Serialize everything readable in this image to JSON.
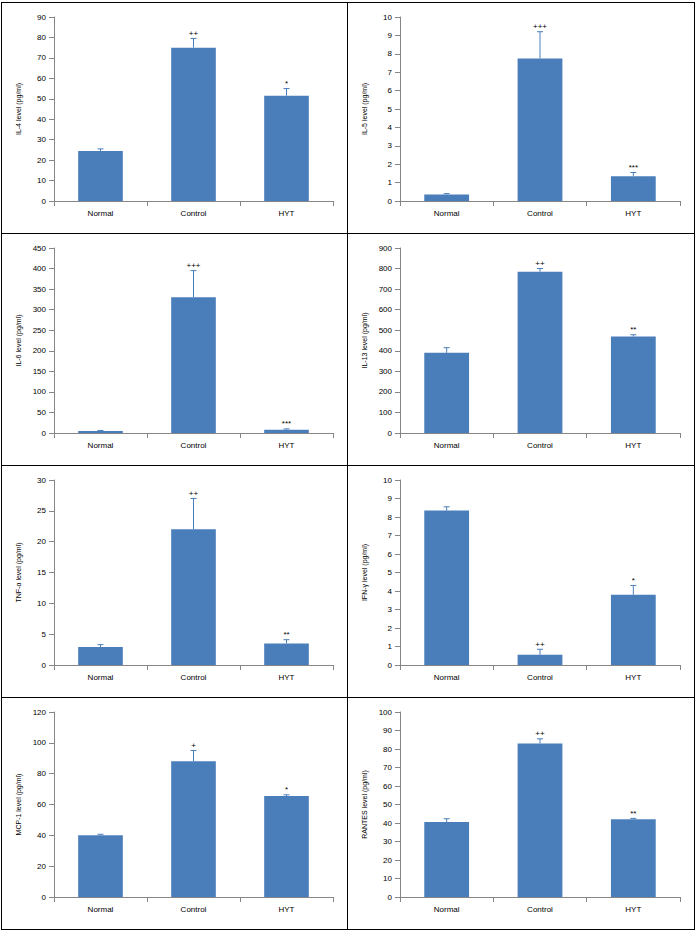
{
  "chart_data": [
    {
      "type": "bar",
      "ylabel": "IL-4 level (pg/ml)",
      "categories": [
        "Normal",
        "Control",
        "HYT"
      ],
      "values": [
        24.5,
        75,
        51.5
      ],
      "errors": [
        1,
        4.5,
        3.5
      ],
      "significance": [
        null,
        "++",
        "*"
      ],
      "color": "#4a7ebb",
      "ylim": [
        0,
        90
      ],
      "yticks": [
        0,
        10,
        20,
        30,
        40,
        50,
        60,
        70,
        80,
        90
      ],
      "grid": false
    },
    {
      "type": "bar",
      "ylabel": "IL-5 level (pg/ml)",
      "categories": [
        "Normal",
        "Control",
        "HYT"
      ],
      "values": [
        0.35,
        7.75,
        1.35
      ],
      "errors": [
        0.05,
        1.45,
        0.2
      ],
      "significance": [
        null,
        "+++",
        "***"
      ],
      "color": "#4a7ebb",
      "ylim": [
        0,
        10
      ],
      "yticks": [
        0,
        1,
        2,
        3,
        4,
        5,
        6,
        7,
        8,
        9,
        10
      ],
      "grid": false
    },
    {
      "type": "bar",
      "ylabel": "IL-6 level (pg/ml)",
      "categories": [
        "Normal",
        "Control",
        "HYT"
      ],
      "values": [
        5,
        330,
        8
      ],
      "errors": [
        1,
        65,
        2
      ],
      "significance": [
        null,
        "+++",
        "***"
      ],
      "color": "#4a7ebb",
      "ylim": [
        0,
        450
      ],
      "yticks": [
        0,
        50,
        100,
        150,
        200,
        250,
        300,
        350,
        400,
        450
      ],
      "grid": false
    },
    {
      "type": "bar",
      "ylabel": "IL-13 level (pg/ml)",
      "categories": [
        "Normal",
        "Control",
        "HYT"
      ],
      "values": [
        390,
        785,
        470
      ],
      "errors": [
        25,
        15,
        8
      ],
      "significance": [
        null,
        "++",
        "**"
      ],
      "color": "#4a7ebb",
      "ylim": [
        0,
        900
      ],
      "yticks": [
        0,
        100,
        200,
        300,
        400,
        500,
        600,
        700,
        800,
        900
      ],
      "grid": false
    },
    {
      "type": "bar",
      "ylabel": "TNF-α level (pg/ml)",
      "categories": [
        "Normal",
        "Control",
        "HYT"
      ],
      "values": [
        2.9,
        22,
        3.5
      ],
      "errors": [
        0.4,
        5,
        0.6
      ],
      "significance": [
        null,
        "++",
        "**"
      ],
      "color": "#4a7ebb",
      "ylim": [
        0,
        30
      ],
      "yticks": [
        0,
        5,
        10,
        15,
        20,
        25,
        30
      ],
      "grid": false
    },
    {
      "type": "bar",
      "ylabel": "IFN-γ level (pg/ml)",
      "categories": [
        "Normal",
        "Control",
        "HYT"
      ],
      "values": [
        8.35,
        0.55,
        3.8
      ],
      "errors": [
        0.2,
        0.3,
        0.5
      ],
      "significance": [
        null,
        "++",
        "*"
      ],
      "color": "#4a7ebb",
      "ylim": [
        0,
        10
      ],
      "yticks": [
        0,
        1,
        2,
        3,
        4,
        5,
        6,
        7,
        8,
        9,
        10
      ],
      "grid": false
    },
    {
      "type": "bar",
      "ylabel": "MCP-1 level (pg/ml)",
      "categories": [
        "Normal",
        "Control",
        "HYT"
      ],
      "values": [
        40,
        88,
        65.5
      ],
      "errors": [
        0.7,
        7,
        0.8
      ],
      "significance": [
        null,
        "+",
        "*"
      ],
      "color": "#4a7ebb",
      "ylim": [
        0,
        120
      ],
      "yticks": [
        0,
        20,
        40,
        60,
        80,
        100,
        120
      ],
      "grid": false
    },
    {
      "type": "bar",
      "ylabel": "RANTES level (pg/ml)",
      "categories": [
        "Normal",
        "Control",
        "HYT"
      ],
      "values": [
        40.5,
        83,
        42
      ],
      "errors": [
        1.8,
        2.5,
        0.5
      ],
      "significance": [
        null,
        "++",
        "**"
      ],
      "color": "#4a7ebb",
      "ylim": [
        0,
        100
      ],
      "yticks": [
        0,
        10,
        20,
        30,
        40,
        50,
        60,
        70,
        80,
        90,
        100
      ],
      "grid": false
    }
  ]
}
